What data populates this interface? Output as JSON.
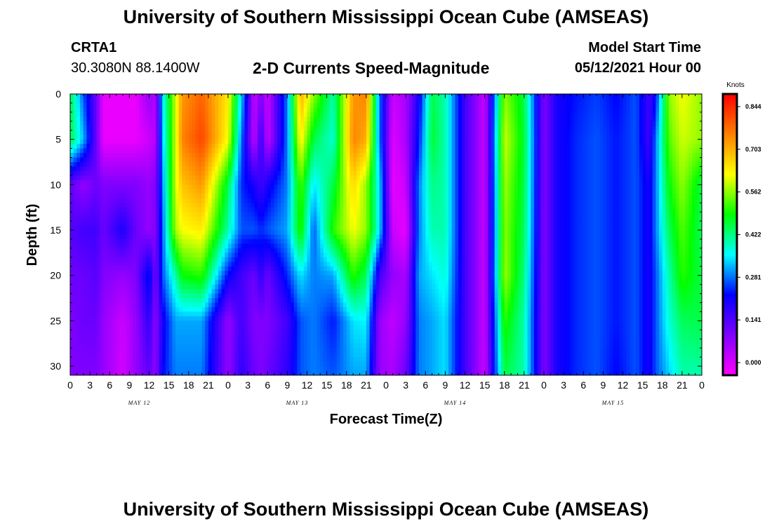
{
  "header": {
    "title": "University of Southern Mississippi Ocean Cube (AMSEAS)",
    "station": "CRTA1",
    "coordinates": "30.3080N  88.1400W",
    "subtitle": "2-D Currents Speed-Magnitude",
    "model_start_label": "Model Start Time",
    "model_start_value": "05/12/2021 Hour 00"
  },
  "footer": {
    "title": "University of Southern Mississippi Ocean Cube (AMSEAS)"
  },
  "chart_data": {
    "type": "heatmap",
    "title": "2-D Currents Speed-Magnitude",
    "xlabel": "Forecast Time(Z)",
    "ylabel": "Depth (ft)",
    "x_units": "forecast hours from 05/12/2021 00Z",
    "xlim": [
      0,
      96
    ],
    "ylim": [
      0,
      31
    ],
    "y_inverted": true,
    "x_tick_labels": [
      "0",
      "3",
      "6",
      "9",
      "12",
      "15",
      "18",
      "21",
      "0",
      "3",
      "6",
      "9",
      "12",
      "15",
      "18",
      "21",
      "0",
      "3",
      "6",
      "9",
      "12",
      "15",
      "18",
      "21",
      "0",
      "3",
      "6",
      "9",
      "12",
      "15",
      "18",
      "21",
      "0"
    ],
    "day_labels": [
      "MAY 12",
      "MAY 13",
      "MAY 14",
      "MAY 15"
    ],
    "y_tick_labels": [
      "0",
      "5",
      "10",
      "15",
      "20",
      "25",
      "30"
    ],
    "colorbar": {
      "unit": "Knots",
      "tick_labels": [
        "0.844",
        "0.703",
        "0.562",
        "0.422",
        "0.281",
        "0.141",
        "0.000"
      ],
      "min": 0.0,
      "max": 0.844,
      "colors": [
        "#ff00ff",
        "#8000ff",
        "#0000ff",
        "#00ffff",
        "#00ff00",
        "#ffff00",
        "#ff8000",
        "#ff0000"
      ]
    },
    "depths_ft": [
      0,
      5,
      10,
      15,
      20,
      25,
      31
    ],
    "hours": [
      0,
      2,
      4,
      5,
      8,
      10,
      12,
      13,
      14,
      16,
      17,
      20,
      24,
      26,
      28,
      29,
      30,
      33,
      35,
      37,
      40,
      43,
      45,
      47,
      49,
      51,
      53,
      55,
      57,
      60,
      63,
      66,
      69,
      72,
      74,
      77,
      80,
      83,
      86,
      88,
      89,
      91,
      93,
      96
    ],
    "values": [
      [
        0.45,
        0.28,
        0.14,
        0.02,
        0.02,
        0.02,
        0.1,
        0.07,
        0.35,
        0.58,
        0.7,
        0.75,
        0.62,
        0.35,
        0.05,
        0.12,
        0.05,
        0.3,
        0.68,
        0.55,
        0.4,
        0.7,
        0.72,
        0.3,
        0.05,
        0.08,
        0.22,
        0.45,
        0.4,
        0.18,
        0.05,
        0.55,
        0.45,
        0.12,
        0.22,
        0.25,
        0.27,
        0.24,
        0.28,
        0.18,
        0.24,
        0.55,
        0.6,
        0.55
      ],
      [
        0.45,
        0.33,
        0.14,
        0.02,
        0.02,
        0.02,
        0.05,
        0.07,
        0.33,
        0.58,
        0.72,
        0.78,
        0.6,
        0.3,
        0.05,
        0.2,
        0.05,
        0.3,
        0.62,
        0.45,
        0.38,
        0.72,
        0.68,
        0.3,
        0.03,
        0.08,
        0.25,
        0.46,
        0.4,
        0.18,
        0.05,
        0.58,
        0.46,
        0.12,
        0.22,
        0.26,
        0.28,
        0.25,
        0.28,
        0.18,
        0.3,
        0.52,
        0.58,
        0.55
      ],
      [
        0.15,
        0.1,
        0.14,
        0.12,
        0.12,
        0.12,
        0.1,
        0.12,
        0.3,
        0.58,
        0.66,
        0.7,
        0.45,
        0.26,
        0.22,
        0.18,
        0.22,
        0.3,
        0.52,
        0.35,
        0.45,
        0.64,
        0.55,
        0.35,
        0.02,
        0.05,
        0.3,
        0.42,
        0.4,
        0.18,
        0.05,
        0.56,
        0.45,
        0.12,
        0.22,
        0.26,
        0.28,
        0.25,
        0.28,
        0.22,
        0.3,
        0.48,
        0.55,
        0.45
      ],
      [
        0.16,
        0.18,
        0.18,
        0.14,
        0.22,
        0.14,
        0.1,
        0.12,
        0.28,
        0.56,
        0.6,
        0.62,
        0.4,
        0.28,
        0.28,
        0.26,
        0.28,
        0.32,
        0.5,
        0.28,
        0.5,
        0.6,
        0.55,
        0.35,
        0.05,
        0.02,
        0.3,
        0.4,
        0.4,
        0.18,
        0.05,
        0.55,
        0.44,
        0.12,
        0.22,
        0.26,
        0.28,
        0.25,
        0.28,
        0.22,
        0.3,
        0.44,
        0.52,
        0.44
      ],
      [
        0.14,
        0.14,
        0.16,
        0.12,
        0.1,
        0.12,
        0.26,
        0.12,
        0.28,
        0.4,
        0.48,
        0.5,
        0.24,
        0.18,
        0.14,
        0.2,
        0.14,
        0.26,
        0.35,
        0.3,
        0.32,
        0.5,
        0.44,
        0.18,
        0.1,
        0.08,
        0.32,
        0.35,
        0.38,
        0.18,
        0.05,
        0.56,
        0.42,
        0.12,
        0.22,
        0.26,
        0.28,
        0.25,
        0.28,
        0.22,
        0.28,
        0.4,
        0.5,
        0.45
      ],
      [
        0.12,
        0.14,
        0.14,
        0.1,
        0.05,
        0.1,
        0.2,
        0.1,
        0.22,
        0.32,
        0.32,
        0.32,
        0.1,
        0.18,
        0.12,
        0.12,
        0.12,
        0.18,
        0.28,
        0.3,
        0.25,
        0.35,
        0.36,
        0.1,
        0.06,
        0.1,
        0.3,
        0.32,
        0.35,
        0.18,
        0.05,
        0.5,
        0.4,
        0.12,
        0.22,
        0.26,
        0.28,
        0.25,
        0.28,
        0.22,
        0.28,
        0.38,
        0.44,
        0.45
      ],
      [
        0.12,
        0.12,
        0.12,
        0.1,
        0.04,
        0.1,
        0.15,
        0.1,
        0.24,
        0.3,
        0.3,
        0.3,
        0.1,
        0.2,
        0.14,
        0.12,
        0.14,
        0.2,
        0.28,
        0.3,
        0.28,
        0.32,
        0.32,
        0.1,
        0.08,
        0.14,
        0.3,
        0.32,
        0.35,
        0.18,
        0.05,
        0.45,
        0.4,
        0.12,
        0.22,
        0.26,
        0.28,
        0.24,
        0.28,
        0.22,
        0.28,
        0.34,
        0.4,
        0.4
      ]
    ]
  }
}
